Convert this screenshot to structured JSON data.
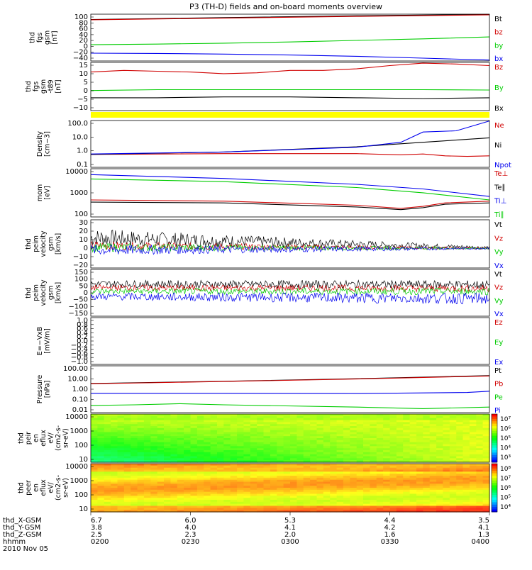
{
  "title": "P3 (TH-D) fields and on-board moments overview",
  "colors": {
    "black": "#000000",
    "red": "#d00000",
    "green": "#00cc00",
    "blue": "#0000ee",
    "yellow": "#ffff00"
  },
  "panels": [
    {
      "ylabel": [
        "thd",
        "fgs",
        "gsm",
        "[nT]"
      ],
      "ticks": [
        "100",
        "80",
        "60",
        "40",
        "20",
        "0",
        "−20",
        "−40"
      ],
      "ylim": [
        -45,
        105
      ],
      "legend": [
        {
          "text": "Bt",
          "color": "black"
        },
        {
          "text": "bz",
          "color": "red"
        },
        {
          "text": "by",
          "color": "green"
        },
        {
          "text": "bx",
          "color": "blue"
        }
      ],
      "series": [
        {
          "name": "Bt",
          "color": "black",
          "points": [
            [
              0,
              88
            ],
            [
              120,
              100
            ],
            [
              180,
              104
            ]
          ]
        },
        {
          "name": "bz",
          "color": "red",
          "points": [
            [
              0,
              87
            ],
            [
              120,
              98
            ],
            [
              180,
              103
            ]
          ]
        },
        {
          "name": "by",
          "color": "green",
          "points": [
            [
              0,
              7
            ],
            [
              30,
              9
            ],
            [
              60,
              12
            ],
            [
              90,
              16
            ],
            [
              120,
              21
            ],
            [
              150,
              26
            ],
            [
              180,
              32
            ]
          ]
        },
        {
          "name": "bx",
          "color": "blue",
          "points": [
            [
              0,
              -20
            ],
            [
              30,
              -21
            ],
            [
              60,
              -23
            ],
            [
              90,
              -26
            ],
            [
              120,
              -30
            ],
            [
              150,
              -36
            ],
            [
              180,
              -42
            ]
          ]
        }
      ]
    },
    {
      "ylabel": [
        "thd",
        "fgs",
        "gsm",
        "-t89",
        "[nT]"
      ],
      "ticks": [
        "15",
        "10",
        "5",
        "0",
        "−5",
        "−10"
      ],
      "ylim": [
        -14,
        16
      ],
      "legend": [
        {
          "text": "Bz",
          "color": "red"
        },
        {
          "text": "By",
          "color": "green"
        },
        {
          "text": "Bx",
          "color": "black"
        }
      ],
      "series": [
        {
          "name": "Bz",
          "color": "red",
          "points": [
            [
              0,
              10
            ],
            [
              15,
              11
            ],
            [
              30,
              10.5
            ],
            [
              45,
              10
            ],
            [
              60,
              9
            ],
            [
              75,
              9.5
            ],
            [
              90,
              11
            ],
            [
              105,
              11
            ],
            [
              120,
              12
            ],
            [
              135,
              14
            ],
            [
              150,
              15.5
            ],
            [
              165,
              15
            ],
            [
              180,
              14
            ]
          ]
        },
        {
          "name": "By",
          "color": "green",
          "points": [
            [
              0,
              -1.5
            ],
            [
              30,
              -1
            ],
            [
              60,
              -1
            ],
            [
              90,
              -1
            ],
            [
              120,
              -1
            ],
            [
              150,
              -1
            ],
            [
              180,
              -1.2
            ]
          ]
        },
        {
          "name": "Bx",
          "color": "black",
          "points": [
            [
              0,
              -6
            ],
            [
              30,
              -6
            ],
            [
              60,
              -5.5
            ],
            [
              90,
              -5.5
            ],
            [
              120,
              -6
            ],
            [
              150,
              -6.5
            ],
            [
              180,
              -6
            ]
          ]
        }
      ]
    },
    {
      "ylabel": [
        "Density",
        "[cm−3]"
      ],
      "ticks": [
        "100.0",
        "10.0",
        "1.0",
        "0.1"
      ],
      "log": true,
      "ylim": [
        0.1,
        150
      ],
      "legend": [
        {
          "text": "Ne",
          "color": "red"
        },
        {
          "text": "Ni",
          "color": "black"
        },
        {
          "text": "Npot",
          "color": "blue"
        }
      ],
      "series": [
        {
          "name": "Ne",
          "color": "red",
          "points": [
            [
              0,
              0.75
            ],
            [
              60,
              0.85
            ],
            [
              120,
              0.85
            ],
            [
              140,
              0.7
            ],
            [
              150,
              0.8
            ],
            [
              160,
              0.6
            ],
            [
              170,
              0.55
            ],
            [
              180,
              0.6
            ]
          ]
        },
        {
          "name": "Ni",
          "color": "black",
          "points": [
            [
              0,
              0.75
            ],
            [
              60,
              1.1
            ],
            [
              120,
              2.5
            ],
            [
              150,
              5
            ],
            [
              180,
              10
            ]
          ]
        },
        {
          "name": "Npot",
          "color": "blue",
          "points": [
            [
              0,
              0.8
            ],
            [
              60,
              1.1
            ],
            [
              120,
              2.3
            ],
            [
              140,
              5
            ],
            [
              150,
              25
            ],
            [
              165,
              30
            ],
            [
              180,
              140
            ]
          ]
        }
      ]
    },
    {
      "ylabel": [
        "mom",
        "[eV]"
      ],
      "ticks": [
        "10000",
        "1000",
        "100"
      ],
      "log": true,
      "ylim": [
        40,
        12000
      ],
      "legend": [
        {
          "text": "Te⊥",
          "color": "red"
        },
        {
          "text": "Te∥",
          "color": "black"
        },
        {
          "text": "Ti⊥",
          "color": "blue"
        },
        {
          "text": "Ti∥",
          "color": "green"
        }
      ],
      "series": [
        {
          "name": "Te⊥",
          "color": "red",
          "points": [
            [
              0,
              300
            ],
            [
              60,
              260
            ],
            [
              120,
              160
            ],
            [
              140,
              110
            ],
            [
              150,
              140
            ],
            [
              160,
              210
            ],
            [
              180,
              260
            ]
          ]
        },
        {
          "name": "Te∥",
          "color": "black",
          "points": [
            [
              0,
              230
            ],
            [
              60,
              210
            ],
            [
              120,
              130
            ],
            [
              140,
              95
            ],
            [
              150,
              120
            ],
            [
              160,
              180
            ],
            [
              180,
              210
            ]
          ]
        },
        {
          "name": "Ti⊥",
          "color": "blue",
          "points": [
            [
              0,
              6000
            ],
            [
              60,
              3800
            ],
            [
              120,
              1900
            ],
            [
              150,
              1100
            ],
            [
              180,
              450
            ]
          ]
        },
        {
          "name": "Ti∥",
          "color": "green",
          "points": [
            [
              0,
              3600
            ],
            [
              60,
              2600
            ],
            [
              120,
              1300
            ],
            [
              150,
              700
            ],
            [
              180,
              300
            ]
          ]
        }
      ]
    },
    {
      "ylabel": [
        "thd",
        "peim",
        "velocity",
        "gsm",
        "[km/s]"
      ],
      "ticks": [
        "30",
        "20",
        "10",
        "0",
        "−10",
        "−20"
      ],
      "ylim": [
        -22,
        32
      ],
      "legend": [
        {
          "text": "Vt",
          "color": "black"
        },
        {
          "text": "Vz",
          "color": "red"
        },
        {
          "text": "Vy",
          "color": "green"
        },
        {
          "text": "Vx",
          "color": "blue"
        }
      ],
      "noise": [
        {
          "color": "black",
          "base": 12,
          "start_amp": 10,
          "end_amp": 1.5,
          "end_base": 1
        },
        {
          "color": "red",
          "base": 3,
          "start_amp": 5,
          "end_amp": 1,
          "end_base": 0
        },
        {
          "color": "green",
          "base": 1,
          "start_amp": 5,
          "end_amp": 1,
          "end_base": 0
        },
        {
          "color": "blue",
          "base": -2,
          "start_amp": 6,
          "end_amp": 1,
          "end_base": 0
        }
      ]
    },
    {
      "ylabel": [
        "thd",
        "peim",
        "velocity",
        "gsm",
        "[km/s]"
      ],
      "ticks": [
        "150",
        "100",
        "50",
        "0",
        "−50",
        "−100",
        "−150"
      ],
      "ylim": [
        -160,
        160
      ],
      "legend": [
        {
          "text": "Vt",
          "color": "black"
        },
        {
          "text": "Vz",
          "color": "red"
        },
        {
          "text": "Vy",
          "color": "green"
        },
        {
          "text": "Vx",
          "color": "blue"
        }
      ],
      "noise": [
        {
          "color": "black",
          "base": 60,
          "start_amp": 25,
          "end_amp": 30,
          "end_base": 55
        },
        {
          "color": "red",
          "base": 35,
          "start_amp": 20,
          "end_amp": 25,
          "end_base": 30
        },
        {
          "color": "green",
          "base": 10,
          "start_amp": 20,
          "end_amp": 25,
          "end_base": 10
        },
        {
          "color": "blue",
          "base": -25,
          "start_amp": 25,
          "end_amp": 40,
          "end_base": -40
        }
      ]
    },
    {
      "ylabel": [
        "E=−VxB",
        "[mV/m]"
      ],
      "ticks": [
        "1.0",
        "0.8",
        "0.6",
        "0.4",
        "0.2",
        "0.0",
        "−0.2",
        "−0.4",
        "−0.6",
        "−0.8",
        "−1.0"
      ],
      "ylim": [
        -1,
        1
      ],
      "legend": [
        {
          "text": "Ez",
          "color": "red"
        },
        {
          "text": "Ey",
          "color": "green"
        },
        {
          "text": "Ex",
          "color": "blue"
        }
      ]
    },
    {
      "ylabel": [
        "Pressure",
        "[nPa]"
      ],
      "ticks": [
        "100.00",
        "10.00",
        "1.00",
        "0.10",
        "0.01"
      ],
      "log": true,
      "ylim": [
        0.008,
        120
      ],
      "legend": [
        {
          "text": "Pt",
          "color": "black"
        },
        {
          "text": "Pb",
          "color": "red"
        },
        {
          "text": "Pe",
          "color": "green"
        },
        {
          "text": "Pi",
          "color": "blue"
        }
      ],
      "series": [
        {
          "name": "Pt",
          "color": "black",
          "points": [
            [
              0,
              3.2
            ],
            [
              60,
              5
            ],
            [
              120,
              8.5
            ],
            [
              180,
              16
            ]
          ]
        },
        {
          "name": "Pb",
          "color": "red",
          "points": [
            [
              0,
              3
            ],
            [
              60,
              4.8
            ],
            [
              120,
              8
            ],
            [
              180,
              15
            ]
          ]
        },
        {
          "name": "Pi",
          "color": "blue",
          "points": [
            [
              0,
              0.42
            ],
            [
              60,
              0.42
            ],
            [
              120,
              0.4
            ],
            [
              170,
              0.5
            ],
            [
              180,
              0.65
            ]
          ]
        },
        {
          "name": "Pe",
          "color": "green",
          "points": [
            [
              0,
              0.035
            ],
            [
              20,
              0.04
            ],
            [
              40,
              0.05
            ],
            [
              60,
              0.04
            ],
            [
              120,
              0.025
            ],
            [
              150,
              0.018
            ],
            [
              180,
              0.025
            ]
          ]
        }
      ]
    },
    {
      "ylabel": [
        "thd",
        "peir",
        "en",
        "eflux",
        "eV/",
        "(cm2-s-",
        "sr-eV)"
      ],
      "ticks": [
        "10000",
        "1000",
        "100",
        "10"
      ],
      "colorbar": [
        "10⁷",
        "10⁶",
        "10⁵",
        "10⁴",
        "10³"
      ],
      "spectrogram": "ion"
    },
    {
      "ylabel": [
        "thd",
        "peer",
        "en",
        "eflux",
        "eV/",
        "(cm2-s-",
        "sr-eV)"
      ],
      "ticks": [
        "10000",
        "1000",
        "100",
        "10"
      ],
      "colorbar": [
        "10⁸",
        "10⁷",
        "10⁶",
        "10⁵",
        "10⁴"
      ],
      "spectrogram": "electron"
    }
  ],
  "xaxis": {
    "rows": [
      {
        "label": "thd_X-GSM",
        "values": [
          "6.7",
          "6.0",
          "5.3",
          "4.4",
          "3.5"
        ]
      },
      {
        "label": "thd_Y-GSM",
        "values": [
          "3.8",
          "4.0",
          "4.1",
          "4.2",
          "4.1"
        ]
      },
      {
        "label": "thd_Z-GSM",
        "values": [
          "2.5",
          "2.3",
          "2.0",
          "1.6",
          "1.3"
        ]
      },
      {
        "label": "hhmm",
        "values": [
          "0200",
          "0230",
          "0300",
          "0330",
          "0400"
        ]
      }
    ],
    "date": "2010 Nov 05"
  },
  "chart_data": {
    "type": "line",
    "title": "P3 (TH-D) fields and on-board moments overview",
    "x_unit": "minutes after 0200 UT, 2010 Nov 05",
    "x_range": [
      0,
      120
    ],
    "panels_summary": [
      {
        "panel": "thd fgs gsm [nT]",
        "series": [
          "Bt",
          "bz",
          "by",
          "bx"
        ]
      },
      {
        "panel": "thd fgs gsm-t89 [nT]",
        "series": [
          "Bz",
          "By",
          "Bx"
        ]
      },
      {
        "panel": "Density [cm−3]",
        "series": [
          "Ne",
          "Ni",
          "Npot"
        ],
        "scale": "log"
      },
      {
        "panel": "mom [eV]",
        "series": [
          "Te⊥",
          "Te∥",
          "Ti⊥",
          "Ti∥"
        ],
        "scale": "log"
      },
      {
        "panel": "thd peim velocity gsm [km/s]",
        "series": [
          "Vt",
          "Vz",
          "Vy",
          "Vx"
        ]
      },
      {
        "panel": "thd peim velocity gsm [km/s]",
        "series": [
          "Vt",
          "Vz",
          "Vy",
          "Vx"
        ]
      },
      {
        "panel": "E=−VxB [mV/m]",
        "series": [
          "Ez",
          "Ey",
          "Ex"
        ]
      },
      {
        "panel": "Pressure [nPa]",
        "series": [
          "Pt",
          "Pb",
          "Pe",
          "Pi"
        ],
        "scale": "log"
      },
      {
        "panel": "thd peir en eflux",
        "type": "heatmap"
      },
      {
        "panel": "thd peer en eflux",
        "type": "heatmap"
      }
    ]
  }
}
